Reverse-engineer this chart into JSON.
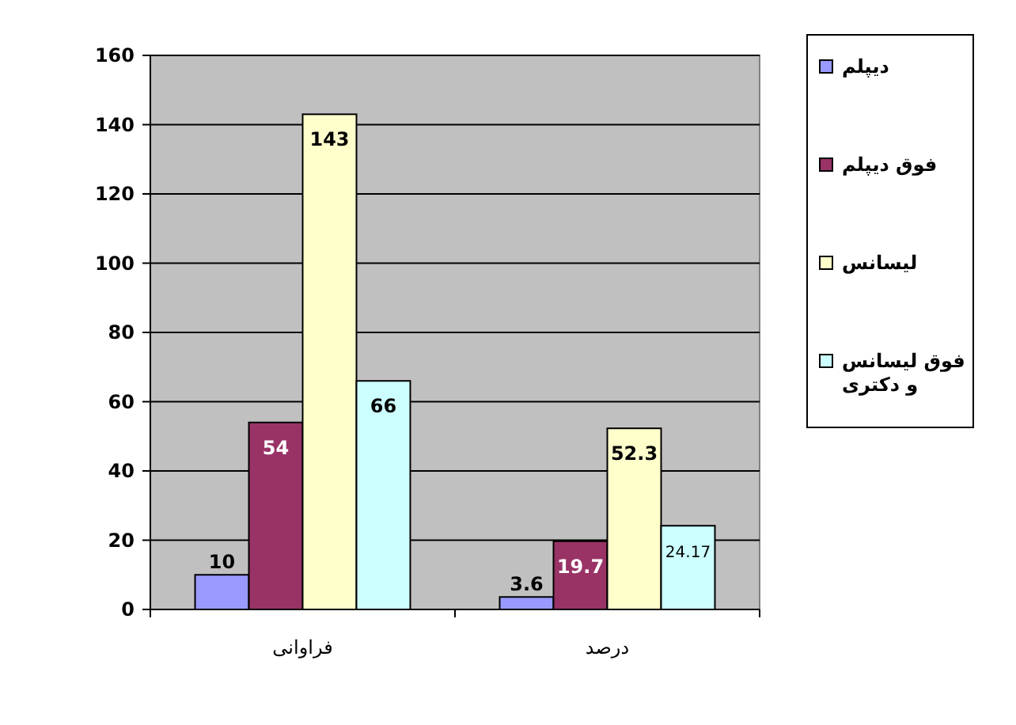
{
  "chart_data": {
    "type": "bar",
    "categories": [
      "فراوانی",
      "درصد"
    ],
    "series": [
      {
        "name": "دیپلم",
        "color": "#9999ff",
        "values": [
          10,
          3.6
        ]
      },
      {
        "name": "فوق دیپلم",
        "color": "#993366",
        "values": [
          54,
          19.7
        ]
      },
      {
        "name": "لیسانس",
        "color": "#ffffcc",
        "values": [
          143,
          52.3
        ]
      },
      {
        "name": "فوق لیسانس و دکتری",
        "color": "#ccffff",
        "values": [
          66,
          24.17
        ]
      }
    ],
    "ylim": [
      0,
      160
    ],
    "yticks": [
      0,
      20,
      40,
      60,
      80,
      100,
      120,
      140,
      160
    ],
    "grid": "y",
    "legend": "right",
    "data_labels": true
  }
}
